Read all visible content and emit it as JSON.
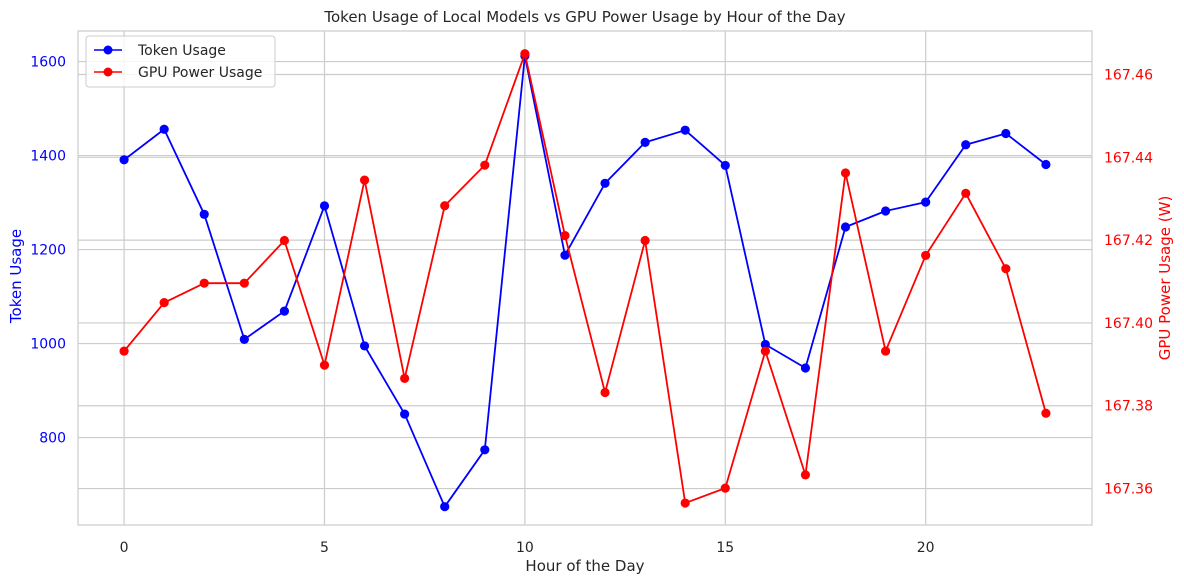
{
  "chart_data": {
    "type": "line",
    "title": "Token Usage of Local Models vs GPU Power Usage by Hour of the Day",
    "xlabel": "Hour of the Day",
    "ylabel_left": "Token Usage",
    "ylabel_right": "GPU Power Usage (W)",
    "x": [
      0,
      1,
      2,
      3,
      4,
      5,
      6,
      7,
      8,
      9,
      10,
      11,
      12,
      13,
      14,
      15,
      16,
      17,
      18,
      19,
      20,
      21,
      22,
      23
    ],
    "xlim": [
      -1.15,
      24.15
    ],
    "xticks": [
      0,
      5,
      10,
      15,
      20
    ],
    "ylim_left": [
      614,
      1665
    ],
    "yticks_left": [
      800,
      1000,
      1200,
      1400,
      1600
    ],
    "ylim_right": [
      167.3512,
      167.4705
    ],
    "yticks_right": [
      167.36,
      167.38,
      167.4,
      167.42,
      167.44,
      167.46
    ],
    "grid": true,
    "legend_position": "top-left",
    "series": [
      {
        "name": "Token Usage",
        "axis": "left",
        "color": "#0000ff",
        "values": [
          1391,
          1456,
          1275,
          1009,
          1069,
          1293,
          995,
          850,
          653,
          774,
          1612,
          1188,
          1341,
          1428,
          1454,
          1379,
          998,
          948,
          1248,
          1282,
          1301,
          1423,
          1447,
          1381
        ]
      },
      {
        "name": "GPU Power Usage",
        "axis": "right",
        "color": "#ff0000",
        "values": [
          167.3932,
          167.4049,
          167.4096,
          167.4096,
          167.4199,
          167.3898,
          167.4345,
          167.3866,
          167.4283,
          167.4381,
          167.465,
          167.4211,
          167.3832,
          167.4199,
          167.3565,
          167.3601,
          167.3932,
          167.3633,
          167.4362,
          167.3932,
          167.4163,
          167.4313,
          167.4131,
          167.3782
        ]
      }
    ]
  }
}
